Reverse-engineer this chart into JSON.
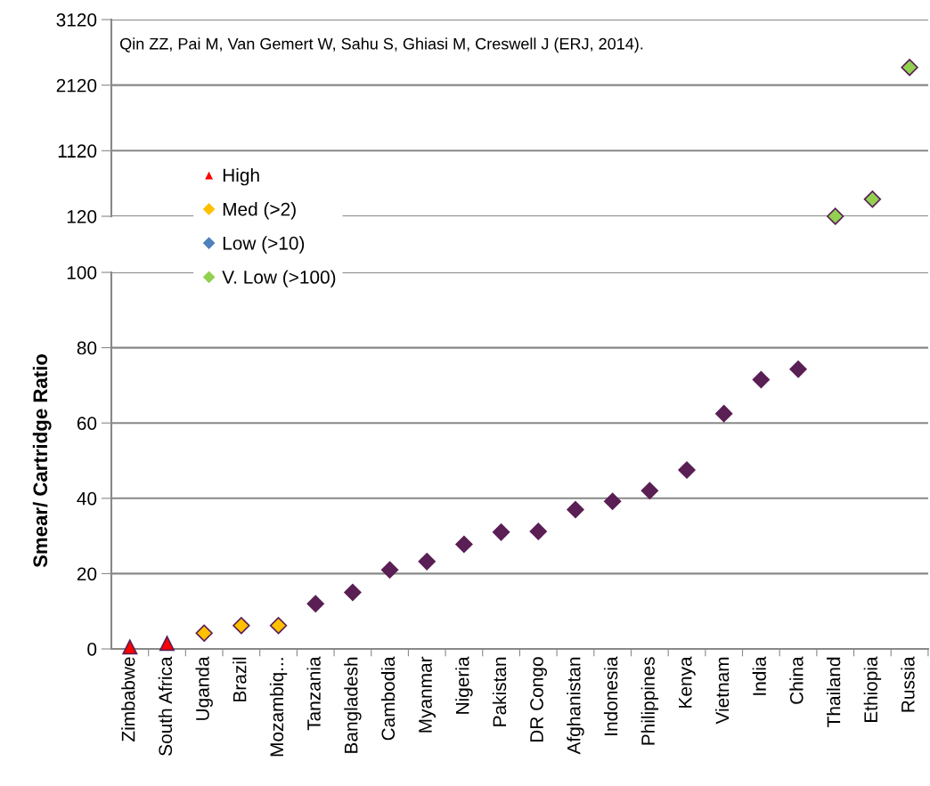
{
  "chart_data": [
    {
      "type": "scatter",
      "ylim": [
        120,
        3120
      ],
      "yticks": [
        120,
        1120,
        2120,
        3120
      ],
      "grid": "y",
      "tick_labels": "y",
      "legend": "left",
      "annotations": [
        "Qin ZZ, Pai M, Van Gemert W, Sahu S, Ghiasi M, Creswell J (ERJ, 2014)."
      ],
      "series": [
        {
          "name": "High",
          "color": "#ff0000",
          "marker": "triangle",
          "values": [
            null,
            null,
            null,
            null,
            null,
            null,
            null,
            null,
            null,
            null,
            null,
            null,
            null,
            null,
            null,
            null,
            null,
            null,
            null,
            null,
            null,
            null
          ]
        },
        {
          "name": "Med (>2)",
          "color": "#ffc000",
          "marker": "diamond",
          "values": [
            null,
            null,
            null,
            null,
            null,
            null,
            null,
            null,
            null,
            null,
            null,
            null,
            null,
            null,
            null,
            null,
            null,
            null,
            null,
            null,
            null,
            null
          ]
        },
        {
          "name": "Low (>10)",
          "color": "#4f81bd",
          "marker": "diamond",
          "values": [
            null,
            null,
            null,
            null,
            null,
            null,
            null,
            null,
            null,
            null,
            null,
            null,
            null,
            null,
            null,
            null,
            null,
            null,
            null,
            null,
            null,
            null
          ]
        },
        {
          "name": "V. Low (>100)",
          "color": "#92d050",
          "marker": "diamond",
          "values": [
            null,
            null,
            null,
            null,
            null,
            null,
            null,
            null,
            null,
            null,
            null,
            null,
            null,
            null,
            null,
            null,
            null,
            null,
            null,
            120,
            380,
            2390
          ]
        }
      ]
    },
    {
      "type": "scatter",
      "categories": [
        "Zimbabwe",
        "South Africa",
        "Uganda",
        "Brazil",
        "Mozambiq...",
        "Tanzania",
        "Bangladesh",
        "Cambodia",
        "Myanmar",
        "Nigeria",
        "Pakistan",
        "DR Congo",
        "Afghanistan",
        "Indonesia",
        "Philippines",
        "Kenya",
        "Vietnam",
        "India",
        "China",
        "Thailand",
        "Ethiopia",
        "Russia"
      ],
      "ylabel": "Smear/ Cartridge Ratio",
      "ylim": [
        0,
        100
      ],
      "yticks": [
        0,
        20,
        40,
        60,
        80,
        100
      ],
      "grid": "y",
      "series": [
        {
          "color": "#ff0000",
          "marker": "triangle",
          "values": [
            0.5,
            1.5,
            null,
            null,
            null,
            null,
            null,
            null,
            null,
            null,
            null,
            null,
            null,
            null,
            null,
            null,
            null,
            null,
            null,
            null,
            null,
            null
          ]
        },
        {
          "color": "#ffc000",
          "marker": "diamond",
          "values": [
            null,
            null,
            4.2,
            6.2,
            6.2,
            null,
            null,
            null,
            null,
            null,
            null,
            null,
            null,
            null,
            null,
            null,
            null,
            null,
            null,
            null,
            null,
            null
          ]
        },
        {
          "color": "#5a1f55",
          "marker": "diamond",
          "values": [
            null,
            null,
            null,
            null,
            null,
            12,
            15,
            21,
            23.2,
            27.8,
            31,
            31.2,
            37,
            39.2,
            42,
            47.5,
            62.5,
            71.5,
            74.3,
            null,
            null,
            null
          ]
        }
      ]
    }
  ]
}
